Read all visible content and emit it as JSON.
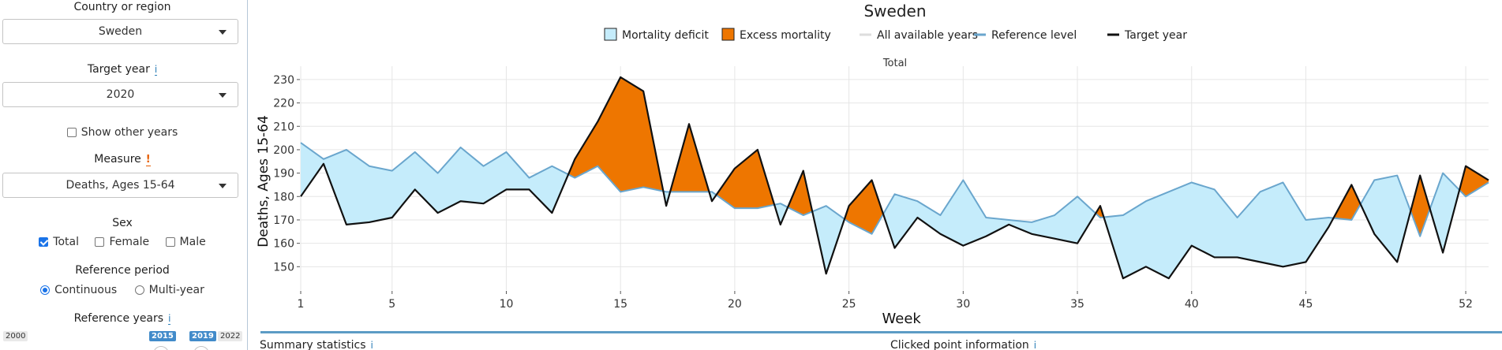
{
  "sidebar": {
    "country": {
      "label": "Country or region",
      "value": "Sweden"
    },
    "target_year": {
      "label": "Target year",
      "info": "i",
      "value": "2020"
    },
    "show_other_years": {
      "label": "Show other years",
      "checked": false
    },
    "measure": {
      "label": "Measure",
      "warn": "!",
      "value": "Deaths, Ages 15-64"
    },
    "sex": {
      "label": "Sex",
      "options": [
        {
          "label": "Total",
          "checked": true
        },
        {
          "label": "Female",
          "checked": false
        },
        {
          "label": "Male",
          "checked": false
        }
      ]
    },
    "reference_period": {
      "label": "Reference period",
      "options": [
        {
          "label": "Continuous",
          "selected": true
        },
        {
          "label": "Multi-year",
          "selected": false
        }
      ]
    },
    "reference_years": {
      "label": "Reference years",
      "info": "i",
      "min_label": "2000",
      "from_label": "2015",
      "to_label": "2019",
      "max_label": "2022"
    }
  },
  "main": {
    "summary_title": "Summary statistics",
    "summary_info": "i",
    "clicked_title": "Clicked point information",
    "clicked_info": "i"
  },
  "chart_data": {
    "type": "area",
    "title": "Sweden",
    "subtitle": "Total",
    "xlabel": "Week",
    "ylabel": "Deaths, Ages 15-64",
    "xlim": [
      1,
      53
    ],
    "ylim": [
      140,
      233
    ],
    "x_ticks": [
      1,
      5,
      10,
      15,
      20,
      25,
      30,
      35,
      40,
      45,
      52
    ],
    "y_ticks": [
      150,
      160,
      170,
      180,
      190,
      200,
      210,
      220,
      230
    ],
    "grid": true,
    "legend_position": "top",
    "legend": [
      {
        "label": "Mortality deficit",
        "kind": "fill",
        "color": "#c5ecfb"
      },
      {
        "label": "Excess mortality",
        "kind": "fill",
        "color": "#ee7600"
      },
      {
        "label": "All available years",
        "kind": "line",
        "color": "#dddddd"
      },
      {
        "label": "Reference level",
        "kind": "line",
        "color": "#6aa6cd"
      },
      {
        "label": "Target year",
        "kind": "line",
        "color": "#111111"
      }
    ],
    "colors": {
      "deficit": "#c5ecfb",
      "excess": "#ee7600",
      "reference": "#6aa6cd",
      "target": "#111111",
      "grid": "#e6e6e6"
    },
    "weeks": [
      1,
      2,
      3,
      4,
      5,
      6,
      7,
      8,
      9,
      10,
      11,
      12,
      13,
      14,
      15,
      16,
      17,
      18,
      19,
      20,
      21,
      22,
      23,
      24,
      25,
      26,
      27,
      28,
      29,
      30,
      31,
      32,
      33,
      34,
      35,
      36,
      37,
      38,
      39,
      40,
      41,
      42,
      43,
      44,
      45,
      46,
      47,
      48,
      49,
      50,
      51,
      52,
      53
    ],
    "series": [
      {
        "name": "Reference level",
        "values": [
          203,
          196,
          200,
          193,
          191,
          199,
          190,
          201,
          193,
          199,
          188,
          193,
          188,
          193,
          182,
          184,
          182,
          182,
          182,
          175,
          175,
          177,
          172,
          176,
          169,
          164,
          181,
          178,
          172,
          187,
          171,
          170,
          169,
          172,
          180,
          171,
          172,
          178,
          182,
          186,
          183,
          171,
          182,
          186,
          170,
          171,
          170,
          187,
          189,
          163,
          190,
          180,
          186
        ]
      },
      {
        "name": "Target year",
        "values": [
          180,
          194,
          168,
          169,
          171,
          183,
          173,
          178,
          177,
          183,
          183,
          173,
          196,
          212,
          231,
          225,
          176,
          211,
          178,
          192,
          200,
          168,
          191,
          147,
          176,
          187,
          158,
          171,
          164,
          159,
          163,
          168,
          164,
          162,
          160,
          176,
          145,
          150,
          145,
          159,
          154,
          154,
          152,
          150,
          152,
          167,
          185,
          164,
          152,
          189,
          156,
          193,
          187
        ]
      }
    ]
  }
}
